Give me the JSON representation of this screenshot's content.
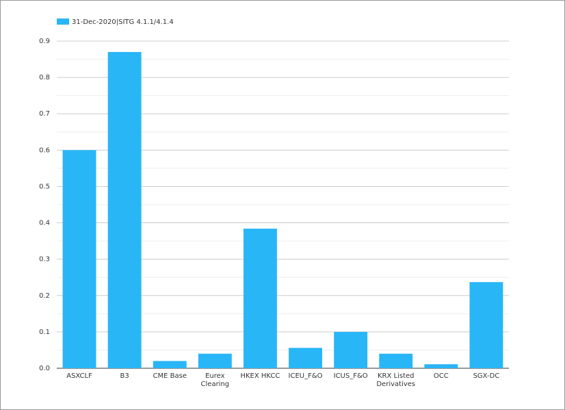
{
  "chart_data": {
    "type": "bar",
    "categories": [
      "ASXCLF",
      "B3",
      "CME Base",
      "Eurex Clearing",
      "HKEX HKCC",
      "ICEU_F&O",
      "ICUS_F&O",
      "KRX Listed Derivatives",
      "OCC",
      "SGX-DC"
    ],
    "series": [
      {
        "name": "31-Dec-2020|SITG 4.1.1/4.1.4",
        "color": "#29b6f6",
        "values": [
          0.6,
          0.87,
          0.02,
          0.04,
          0.384,
          0.056,
          0.1,
          0.04,
          0.011,
          0.237
        ]
      }
    ],
    "ylim": [
      0,
      0.9
    ],
    "yticks": [
      {
        "value": 0,
        "label": "0.0"
      },
      0.1,
      0.2,
      0.3,
      0.4,
      0.5,
      0.6,
      0.7,
      0.8,
      0.9
    ],
    "grid": true,
    "legend": "top-left"
  }
}
